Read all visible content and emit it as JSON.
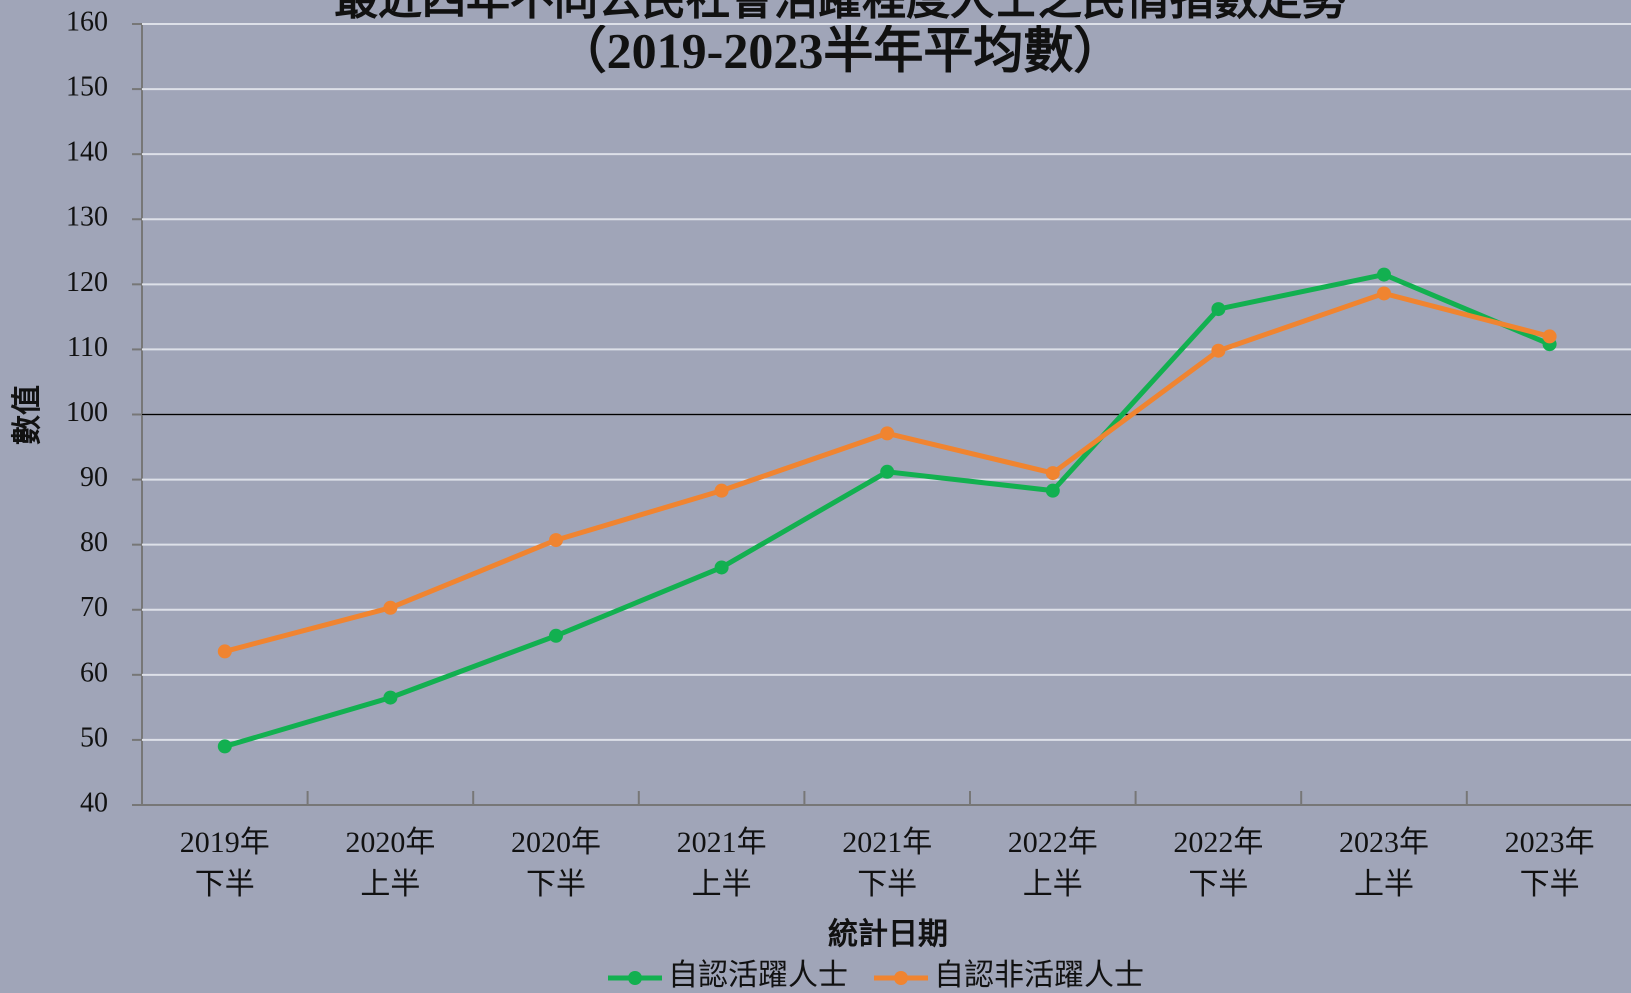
{
  "chart_data": {
    "type": "line",
    "title": "最近四年不同公民社會活躍程度人士之民情指數走勢",
    "subtitle": "（2019-2023半年平均數）",
    "x_label": "統計日期",
    "y_label": "數值",
    "categories": [
      "2019年\n下半",
      "2020年\n上半",
      "2020年\n下半",
      "2021年\n上半",
      "2021年\n下半",
      "2022年\n上半",
      "2022年\n下半",
      "2023年\n上半",
      "2023年\n下半"
    ],
    "series": [
      {
        "name": "自認活躍人士",
        "color": "#12b050",
        "values": [
          49,
          56.5,
          66,
          76.5,
          91.2,
          88.3,
          116.2,
          121.5,
          110.8
        ]
      },
      {
        "name": "自認非活躍人士",
        "color": "#f08430",
        "values": [
          63.6,
          70.3,
          80.7,
          88.3,
          97.1,
          91,
          109.8,
          118.6,
          112
        ]
      }
    ],
    "ylim": [
      40,
      160
    ],
    "yticks": [
      40,
      50,
      60,
      70,
      80,
      90,
      100,
      110,
      120,
      130,
      140,
      150,
      160
    ],
    "reference_line": 100,
    "grid": true,
    "legend": "bottom"
  }
}
